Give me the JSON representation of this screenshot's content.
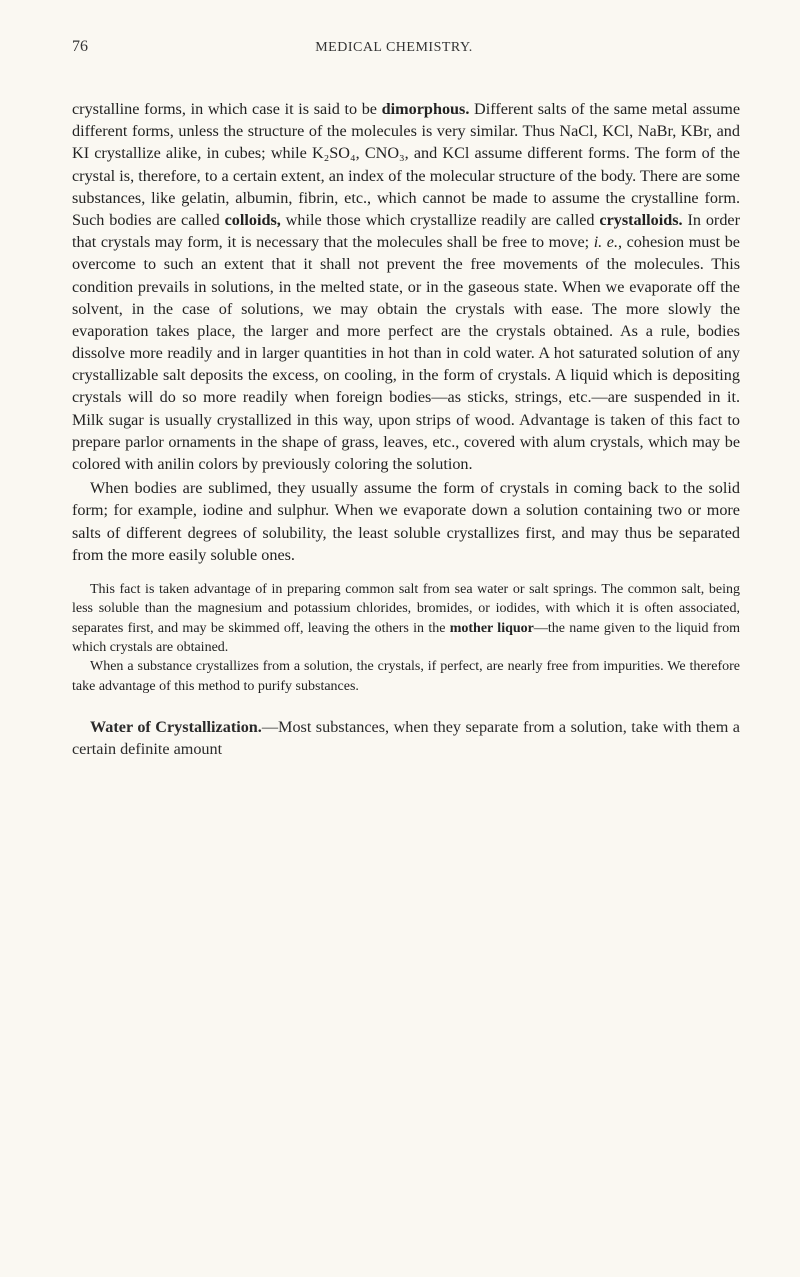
{
  "header": {
    "page_number": "76",
    "running_head": "MEDICAL CHEMISTRY."
  },
  "body": {
    "p1_a": "crystalline forms, in which case it is said to be ",
    "p1_bold1": "dimorphous.",
    "p1_b": " Different salts of the same metal assume different forms, unless the structure of the molecules is very similar. Thus NaCl, KCl, NaBr, KBr, and KI crystallize alike, in cubes; while K₂SO₄, CNO₃, and KCl assume different forms. The form of the crystal is, therefore, to a certain extent, an index of the molecular structure of the body. There are some substances, like gelatin, albumin, fibrin, etc., which cannot be made to assume the crystalline form. Such bodies are called ",
    "p1_bold2": "colloids,",
    "p1_c": " while those which crystallize readily are called ",
    "p1_bold3": "crystalloids.",
    "p1_d": " In order that crystals may form, it is necessary that the molecules shall be free to move; ",
    "p1_ital1": "i. e.",
    "p1_e": ", cohesion must be overcome to such an extent that it shall not prevent the free movements of the molecules. This condition prevails in solutions, in the melted state, or in the gaseous state. When we evaporate off the solvent, in the case of solutions, we may obtain the crystals with ease. The more slowly the evaporation takes place, the larger and more perfect are the crystals obtained. As a rule, bodies dissolve more readily and in larger quantities in hot than in cold water. A hot saturated solution of any crystallizable salt deposits the excess, on cooling, in the form of crystals. A liquid which is depositing crystals will do so more readily when foreign bodies—as sticks, strings, etc.—are suspended in it. Milk sugar is usually crystallized in this way, upon strips of wood. Advantage is taken of this fact to prepare parlor ornaments in the shape of grass, leaves, etc., covered with alum crystals, which may be colored with anilin colors by previously coloring the solution.",
    "p2": "When bodies are sublimed, they usually assume the form of crystals in coming back to the solid form; for example, iodine and sulphur. When we evaporate down a solution containing two or more salts of different degrees of solubility, the least soluble crystallizes first, and may thus be separated from the more easily soluble ones.",
    "sp1_a": "This fact is taken advantage of in preparing common salt from sea water or salt springs. The common salt, being less soluble than the magnesium and potassium chlorides, bromides, or iodides, with which it is often associated, separates first, and may be skimmed off, leaving the others in the ",
    "sp1_bold": "mother liquor",
    "sp1_b": "—the name given to the liquid from which crystals are obtained.",
    "sp2": "When a substance crystallizes from a solution, the crystals, if perfect, are nearly free from impurities. We therefore take advantage of this method to purify substances.",
    "sec_bold": "Water of Crystallization.",
    "sec_rest": "—Most substances, when they separate from a solution, take with them a certain definite amount"
  }
}
